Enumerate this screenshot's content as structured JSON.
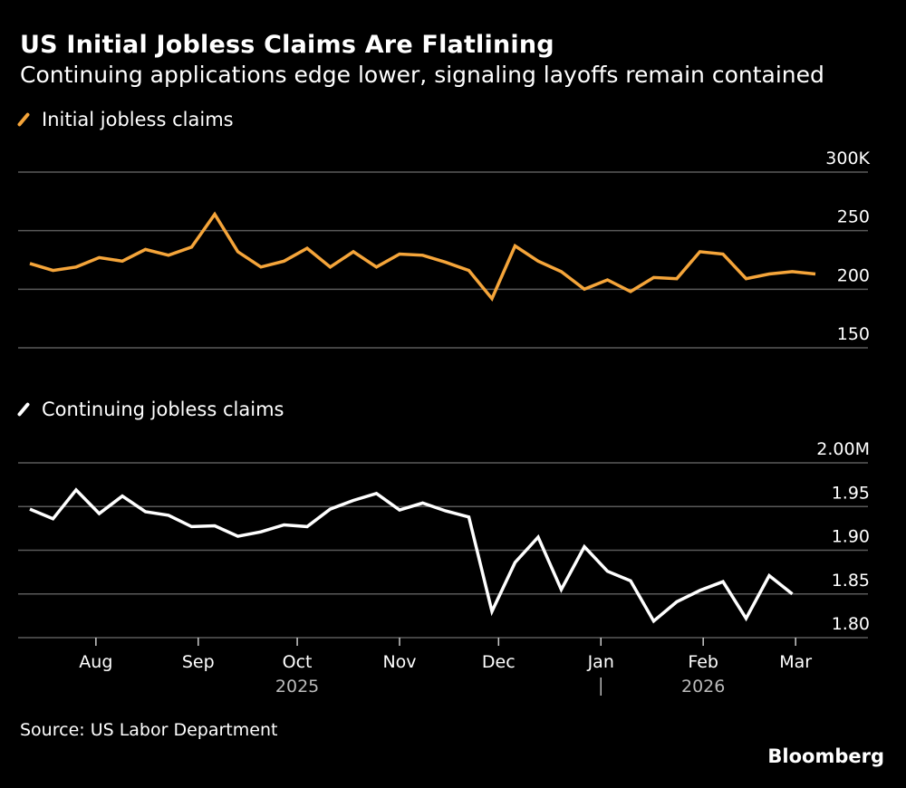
{
  "header": {
    "title": "US Initial Jobless Claims Are Flatlining",
    "subtitle": "Continuing applications edge lower, signaling layoffs remain contained"
  },
  "footer": {
    "source": "Source: US Labor Department",
    "brand": "Bloomberg"
  },
  "colors": {
    "background": "#000000",
    "initial": "#f5a53a",
    "continuing": "#ffffff",
    "grid": "#5a5a5a"
  },
  "chart_data": [
    {
      "type": "line",
      "legend": "Initial jobless claims",
      "color": "#f5a53a",
      "ylim": [
        150,
        300
      ],
      "yticks": [
        150,
        200,
        250,
        300
      ],
      "ytick_labels": [
        "150",
        "200",
        "250",
        "300K"
      ],
      "grid": true,
      "legend_placement": "top-left",
      "series": [
        {
          "name": "Initial jobless claims",
          "x": [
            "2025-07-12",
            "2025-07-19",
            "2025-07-26",
            "2025-08-02",
            "2025-08-09",
            "2025-08-16",
            "2025-08-23",
            "2025-08-30",
            "2025-09-06",
            "2025-09-13",
            "2025-09-20",
            "2025-09-27",
            "2025-10-04",
            "2025-10-11",
            "2025-10-18",
            "2025-10-25",
            "2025-11-01",
            "2025-11-08",
            "2025-11-15",
            "2025-11-22",
            "2025-11-29",
            "2025-12-06",
            "2025-12-13",
            "2025-12-20",
            "2025-12-27",
            "2026-01-03",
            "2026-01-10",
            "2026-01-17",
            "2026-01-24",
            "2026-01-31",
            "2026-02-07",
            "2026-02-14",
            "2026-02-21",
            "2026-02-28",
            "2026-03-07"
          ],
          "y": [
            222,
            216,
            219,
            227,
            224,
            234,
            229,
            236,
            264,
            232,
            219,
            224,
            235,
            219,
            232,
            219,
            230,
            229,
            223,
            216,
            192,
            237,
            224,
            215,
            200,
            208,
            198,
            210,
            209,
            232,
            230,
            209,
            213,
            215,
            213
          ]
        }
      ]
    },
    {
      "type": "line",
      "legend": "Continuing jobless claims",
      "color": "#ffffff",
      "ylim": [
        1.8,
        2.0
      ],
      "yticks": [
        1.8,
        1.85,
        1.9,
        1.95,
        2.0
      ],
      "ytick_labels": [
        "1.80",
        "1.85",
        "1.90",
        "1.95",
        "2.00M"
      ],
      "grid": true,
      "legend_placement": "top-left",
      "series": [
        {
          "name": "Continuing jobless claims",
          "x": [
            "2025-07-12",
            "2025-07-19",
            "2025-07-26",
            "2025-08-02",
            "2025-08-09",
            "2025-08-16",
            "2025-08-23",
            "2025-08-30",
            "2025-09-06",
            "2025-09-13",
            "2025-09-20",
            "2025-09-27",
            "2025-10-04",
            "2025-10-11",
            "2025-10-18",
            "2025-10-25",
            "2025-11-01",
            "2025-11-08",
            "2025-11-15",
            "2025-11-22",
            "2025-11-29",
            "2025-12-06",
            "2025-12-13",
            "2025-12-20",
            "2025-12-27",
            "2026-01-03",
            "2026-01-10",
            "2026-01-17",
            "2026-01-24",
            "2026-01-31",
            "2026-02-07",
            "2026-02-14",
            "2026-02-21",
            "2026-02-28"
          ],
          "y": [
            1.947,
            1.936,
            1.969,
            1.942,
            1.962,
            1.944,
            1.94,
            1.927,
            1.928,
            1.916,
            1.921,
            1.929,
            1.927,
            1.947,
            1.957,
            1.965,
            1.946,
            1.954,
            1.945,
            1.938,
            1.83,
            1.886,
            1.915,
            1.855,
            1.904,
            1.876,
            1.865,
            1.819,
            1.841,
            1.854,
            1.864,
            1.822,
            1.871,
            1.85
          ]
        }
      ]
    }
  ],
  "xaxis": {
    "months": [
      {
        "label": "Aug",
        "date": "2025-08-01"
      },
      {
        "label": "Sep",
        "date": "2025-09-01"
      },
      {
        "label": "Oct",
        "date": "2025-10-01"
      },
      {
        "label": "Nov",
        "date": "2025-11-01"
      },
      {
        "label": "Dec",
        "date": "2025-12-01"
      },
      {
        "label": "Jan",
        "date": "2026-01-01"
      },
      {
        "label": "Feb",
        "date": "2026-02-01"
      },
      {
        "label": "Mar",
        "date": "2026-03-01"
      }
    ],
    "years": [
      {
        "label": "2025",
        "date": "2025-10-01"
      },
      {
        "label": "2026",
        "date": "2026-02-01"
      }
    ],
    "year_divider": "2026-01-01"
  }
}
